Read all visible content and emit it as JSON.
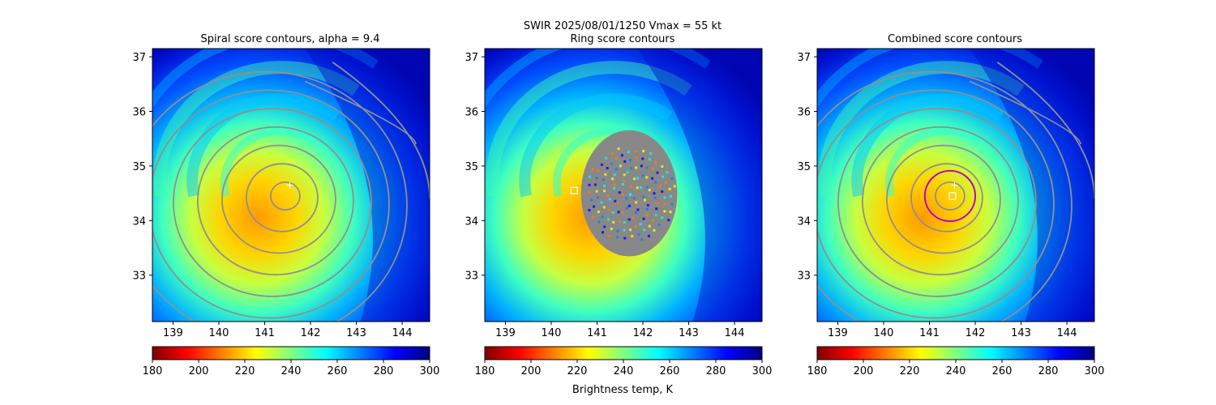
{
  "figure": {
    "suptitle_line1": "SWIR  2025/08/01/1250    Vmax = 55 kt",
    "colorbar_label": "Brightness temp, K",
    "colormap": [
      "#800000",
      "#ff0000",
      "#ff8000",
      "#ffff00",
      "#80ff80",
      "#00ffff",
      "#0080ff",
      "#0000ff",
      "#000080"
    ]
  },
  "chart_data": [
    {
      "type": "heatmap",
      "title": "Spiral score contours, alpha =  9.4",
      "xlabel": "",
      "ylabel": "",
      "xlim": [
        138.55,
        144.6
      ],
      "ylim": [
        32.15,
        37.15
      ],
      "xticks": [
        139,
        140,
        141,
        142,
        143,
        144
      ],
      "yticks": [
        33,
        34,
        35,
        36,
        37
      ],
      "field": "Brightness temperature (K)",
      "contours": "spiral",
      "center_marker": {
        "label": "+",
        "lon": 141.55,
        "lat": 34.65,
        "color": "#ffffff"
      },
      "colorbar": {
        "min": 180,
        "max": 300,
        "ticks": [
          180,
          200,
          220,
          240,
          260,
          280,
          300
        ],
        "label": ""
      }
    },
    {
      "type": "heatmap",
      "title": "Ring score contours",
      "xlabel": "",
      "ylabel": "",
      "xlim": [
        138.55,
        144.6
      ],
      "ylim": [
        32.15,
        37.15
      ],
      "xticks": [
        139,
        140,
        141,
        142,
        143,
        144
      ],
      "yticks": [
        33,
        34,
        35,
        36,
        37
      ],
      "field": "Brightness temperature (K)",
      "contours": "ring",
      "ring_patch": {
        "lon": 141.7,
        "lat": 34.5,
        "radius_deg": 1.05
      },
      "center_marker": {
        "label": "square",
        "lon": 140.5,
        "lat": 34.55,
        "color": "#ffffff"
      },
      "colorbar": {
        "min": 180,
        "max": 300,
        "ticks": [
          180,
          200,
          220,
          240,
          260,
          280,
          300
        ],
        "label": "Brightness temp, K"
      }
    },
    {
      "type": "heatmap",
      "title": "Combined score contours",
      "xlabel": "",
      "ylabel": "",
      "xlim": [
        138.55,
        144.6
      ],
      "ylim": [
        32.15,
        37.15
      ],
      "xticks": [
        139,
        140,
        141,
        142,
        143,
        144
      ],
      "yticks": [
        33,
        34,
        35,
        36,
        37
      ],
      "field": "Brightness temperature (K)",
      "contours": "spiral",
      "center_marker": {
        "label": "+",
        "lon": 141.55,
        "lat": 34.65,
        "color": "#ffffff"
      },
      "center_square": {
        "lon": 141.5,
        "lat": 34.45,
        "color": "#ffffff"
      },
      "circle": {
        "lon": 141.45,
        "lat": 34.45,
        "radius_deg": 0.55,
        "color": "#c000c0"
      },
      "colorbar": {
        "min": 180,
        "max": 300,
        "ticks": [
          180,
          200,
          220,
          240,
          260,
          280,
          300
        ],
        "label": ""
      }
    }
  ]
}
